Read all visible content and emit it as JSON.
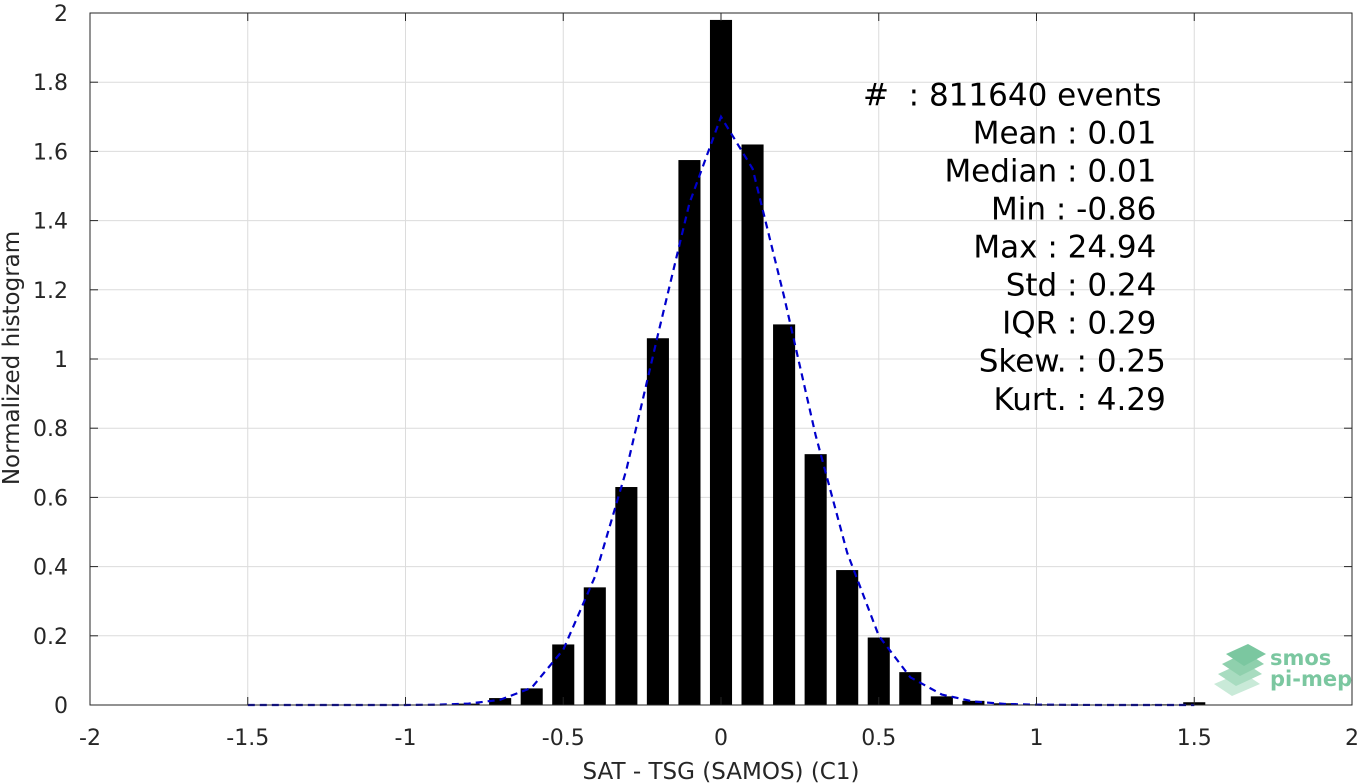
{
  "chart_data": {
    "type": "bar",
    "xlabel": "SAT - TSG (SAMOS) (C1)",
    "ylabel": "Normalized histogram",
    "xlim": [
      -2,
      2
    ],
    "ylim": [
      0,
      2
    ],
    "xticks": [
      -2,
      -1.5,
      -1,
      -0.5,
      0,
      0.5,
      1,
      1.5,
      2
    ],
    "xtick_labels": [
      "-2",
      "-1.5",
      "-1",
      "-0.5",
      "0",
      "0.5",
      "1",
      "1.5",
      "2"
    ],
    "yticks": [
      0,
      0.2,
      0.4,
      0.6,
      0.8,
      1,
      1.2,
      1.4,
      1.6,
      1.8,
      2
    ],
    "ytick_labels": [
      "0",
      "0.2",
      "0.4",
      "0.6",
      "0.8",
      "1",
      "1.2",
      "1.4",
      "1.6",
      "1.8",
      "2"
    ],
    "grid": true,
    "series": [
      {
        "type": "bar",
        "color": "#000000",
        "x": [
          -1.5,
          -1.4,
          -1.3,
          -1.2,
          -1.1,
          -1.0,
          -0.9,
          -0.8,
          -0.7,
          -0.6,
          -0.5,
          -0.4,
          -0.3,
          -0.2,
          -0.1,
          0.0,
          0.1,
          0.2,
          0.3,
          0.4,
          0.5,
          0.6,
          0.7,
          0.8,
          0.9,
          1.0,
          1.1,
          1.2,
          1.3,
          1.4,
          1.5
        ],
        "values": [
          0,
          0,
          0,
          0,
          0,
          0,
          0.001,
          0.004,
          0.02,
          0.048,
          0.175,
          0.34,
          0.63,
          1.06,
          1.575,
          1.98,
          1.62,
          1.1,
          0.725,
          0.39,
          0.195,
          0.095,
          0.025,
          0.012,
          0.005,
          0.002,
          0.001,
          0.001,
          0.001,
          0.002,
          0.008
        ]
      },
      {
        "type": "line",
        "style": "dashed",
        "color": "#0000cc",
        "x": [
          -1.5,
          -1.2,
          -1.0,
          -0.9,
          -0.8,
          -0.7,
          -0.6,
          -0.5,
          -0.4,
          -0.3,
          -0.2,
          -0.1,
          0.0,
          0.1,
          0.2,
          0.3,
          0.4,
          0.5,
          0.6,
          0.7,
          0.8,
          0.9,
          1.0,
          1.2,
          1.5
        ],
        "values": [
          0.0,
          0.0,
          0.0,
          0.001,
          0.004,
          0.015,
          0.05,
          0.16,
          0.37,
          0.68,
          1.07,
          1.45,
          1.7,
          1.55,
          1.18,
          0.78,
          0.44,
          0.2,
          0.08,
          0.03,
          0.01,
          0.003,
          0.001,
          0.0,
          0.0
        ]
      }
    ],
    "stats": [
      {
        "label": "#  : 811640 events",
        "anchor": "start",
        "x": 0.45,
        "y": 1.765
      },
      {
        "label": "Mean : 0.01",
        "anchor": "end",
        "x": 1.38,
        "y": 1.655
      },
      {
        "label": "Median : 0.01",
        "anchor": "end",
        "x": 1.38,
        "y": 1.545
      },
      {
        "label": "Min : -0.86",
        "anchor": "end",
        "x": 1.38,
        "y": 1.435
      },
      {
        "label": "Max : 24.94",
        "anchor": "end",
        "x": 1.38,
        "y": 1.325
      },
      {
        "label": "Std : 0.24",
        "anchor": "end",
        "x": 1.38,
        "y": 1.215
      },
      {
        "label": "IQR : 0.29",
        "anchor": "end",
        "x": 1.38,
        "y": 1.105
      },
      {
        "label": "Skew. : 0.25",
        "anchor": "end",
        "x": 1.41,
        "y": 0.995
      },
      {
        "label": "Kurt. : 4.29",
        "anchor": "end",
        "x": 1.41,
        "y": 0.885
      }
    ]
  },
  "logo": {
    "line1": "smos",
    "line2": "pi-mep",
    "color": "#7bc7a0"
  }
}
